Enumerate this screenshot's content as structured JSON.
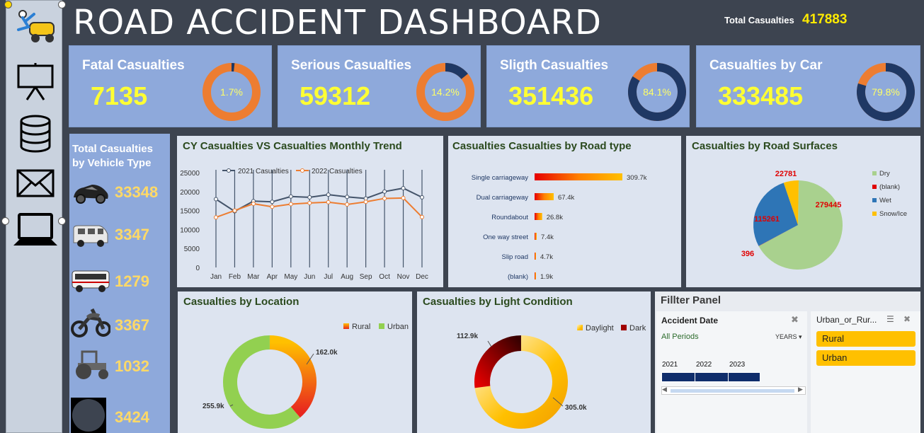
{
  "header": {
    "title": "ROAD ACCIDENT DASHBOARD",
    "total_label": "Total Casualties",
    "total_value": "417883"
  },
  "sidebar": {
    "icons": [
      "accident-icon",
      "presentation-board-icon",
      "database-icon",
      "mail-icon",
      "laptop-icon"
    ]
  },
  "kpis": [
    {
      "label": "Fatal Casualties",
      "value": "7135",
      "percent_text": "1.7%",
      "percent": 1.7
    },
    {
      "label": "Serious Casualties",
      "value": "59312",
      "percent_text": "14.2%",
      "percent": 14.2
    },
    {
      "label": "Sligth Casualties",
      "value": "351436",
      "percent_text": "84.1%",
      "percent": 84.1
    },
    {
      "label": "Casualties by Car",
      "value": "333485",
      "percent_text": "79.8%",
      "percent": 79.8
    }
  ],
  "colors": {
    "accent_orange": "#ed7d31",
    "navy": "#1f3864",
    "kpi_bg": "#8ea9db",
    "yellow": "#ffff33"
  },
  "vehicle_panel": {
    "title_line1": "Total Casualties",
    "title_line2": "by Vehicle Type",
    "items": [
      {
        "icon": "car-icon",
        "value": "33348"
      },
      {
        "icon": "van-icon",
        "value": "3347"
      },
      {
        "icon": "bus-icon",
        "value": "1279"
      },
      {
        "icon": "motorcycle-icon",
        "value": "3367"
      },
      {
        "icon": "tractor-icon",
        "value": "1032"
      },
      {
        "icon": "other-vehicle-icon",
        "value": "3424"
      }
    ]
  },
  "chart_data": [
    {
      "type": "line",
      "title": "CY Casualties VS Casualties Monthly Trend",
      "x": [
        "Jan",
        "Feb",
        "Mar",
        "Apr",
        "May",
        "Jun",
        "Jul",
        "Aug",
        "Sep",
        "Oct",
        "Nov",
        "Dec"
      ],
      "ylim": [
        0,
        25000
      ],
      "yticks": [
        "0",
        "5000",
        "10000",
        "15000",
        "20000",
        "25000"
      ],
      "series": [
        {
          "name": "2021 Casualties",
          "color": "#44546a",
          "values": [
            18000,
            14800,
            17500,
            17300,
            18700,
            18500,
            19200,
            18600,
            18200,
            20000,
            20900,
            18500
          ]
        },
        {
          "name": "2022 Casualties",
          "color": "#ed7d31",
          "values": [
            13200,
            15000,
            16800,
            16000,
            16700,
            17000,
            17200,
            16600,
            17300,
            18200,
            18300,
            13300
          ]
        }
      ]
    },
    {
      "type": "bar",
      "title": "Casualties Casualties by Road type",
      "categories": [
        "Single carriageway",
        "Dual carriageway",
        "Roundabout",
        "One way street",
        "Slip road",
        "(blank)"
      ],
      "values": [
        309.7,
        67.4,
        26.8,
        7.4,
        4.7,
        1.9
      ],
      "data_labels": [
        "309.7k",
        "67.4k",
        "26.8k",
        "7.4k",
        "4.7k",
        "1.9k"
      ]
    },
    {
      "type": "pie",
      "title": "Casualties by Road Surfaces",
      "categories": [
        "Dry",
        "(blank)",
        "Wet",
        "Snow/Ice"
      ],
      "values": [
        279445,
        396,
        115261,
        22781
      ],
      "data_labels": [
        "279445",
        "396",
        "115261",
        "22781"
      ],
      "colors": [
        "#a9d18e",
        "#e00000",
        "#2e75b6",
        "#ffc000"
      ]
    },
    {
      "type": "pie",
      "title": "Casualties by Location",
      "categories": [
        "Rural",
        "Urban"
      ],
      "values": [
        162.0,
        255.9
      ],
      "data_labels": [
        "162.0k",
        "255.9k"
      ],
      "colors": [
        "#ff8c00",
        "#92d050"
      ]
    },
    {
      "type": "pie",
      "title": "Casualties by Light Condition",
      "categories": [
        "Daylight",
        "Dark"
      ],
      "values": [
        305.0,
        112.9
      ],
      "data_labels": [
        "305.0k",
        "112.9k"
      ],
      "colors": [
        "#ffc000",
        "#a00000"
      ]
    }
  ],
  "filter_panel": {
    "title": "Fillter Panel",
    "date_slicer": {
      "title": "Accident Date",
      "periods": "All Periods",
      "level": "YEARS",
      "years": [
        "2021",
        "2022",
        "2023"
      ]
    },
    "location_slicer": {
      "title": "Urban_or_Rur...",
      "options": [
        "Rural",
        "Urban"
      ]
    }
  }
}
